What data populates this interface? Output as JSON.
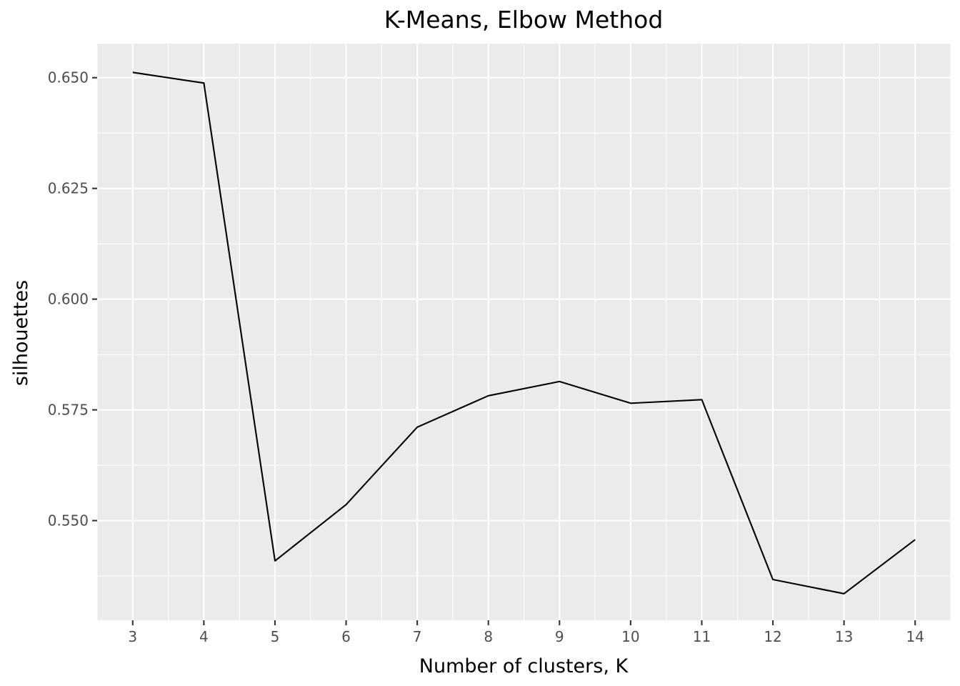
{
  "chart_data": {
    "type": "line",
    "title": "K-Means, Elbow Method",
    "xlabel": "Number of clusters, K",
    "ylabel": "silhouettes",
    "x": [
      3,
      4,
      5,
      6,
      7,
      8,
      9,
      10,
      11,
      12,
      13,
      14
    ],
    "series": [
      {
        "values": [
          0.6512,
          0.6488,
          0.5409,
          0.5536,
          0.5711,
          0.5782,
          0.5814,
          0.5765,
          0.5773,
          0.5367,
          0.5335,
          0.5457
        ]
      }
    ],
    "xticks": [
      "3",
      "4",
      "5",
      "6",
      "7",
      "8",
      "9",
      "10",
      "11",
      "12",
      "13",
      "14"
    ],
    "yticks": [
      0.55,
      0.575,
      0.6,
      0.625,
      0.65
    ],
    "ytick_labels": [
      "0.550",
      "0.575",
      "0.600",
      "0.625",
      "0.650"
    ],
    "xlim": [
      2.5,
      14.5
    ],
    "ylim": [
      0.5275,
      0.6577
    ],
    "grid": true,
    "line_color": "#000000",
    "panel_background": "#ebebeb",
    "grid_color": "#ffffff"
  }
}
